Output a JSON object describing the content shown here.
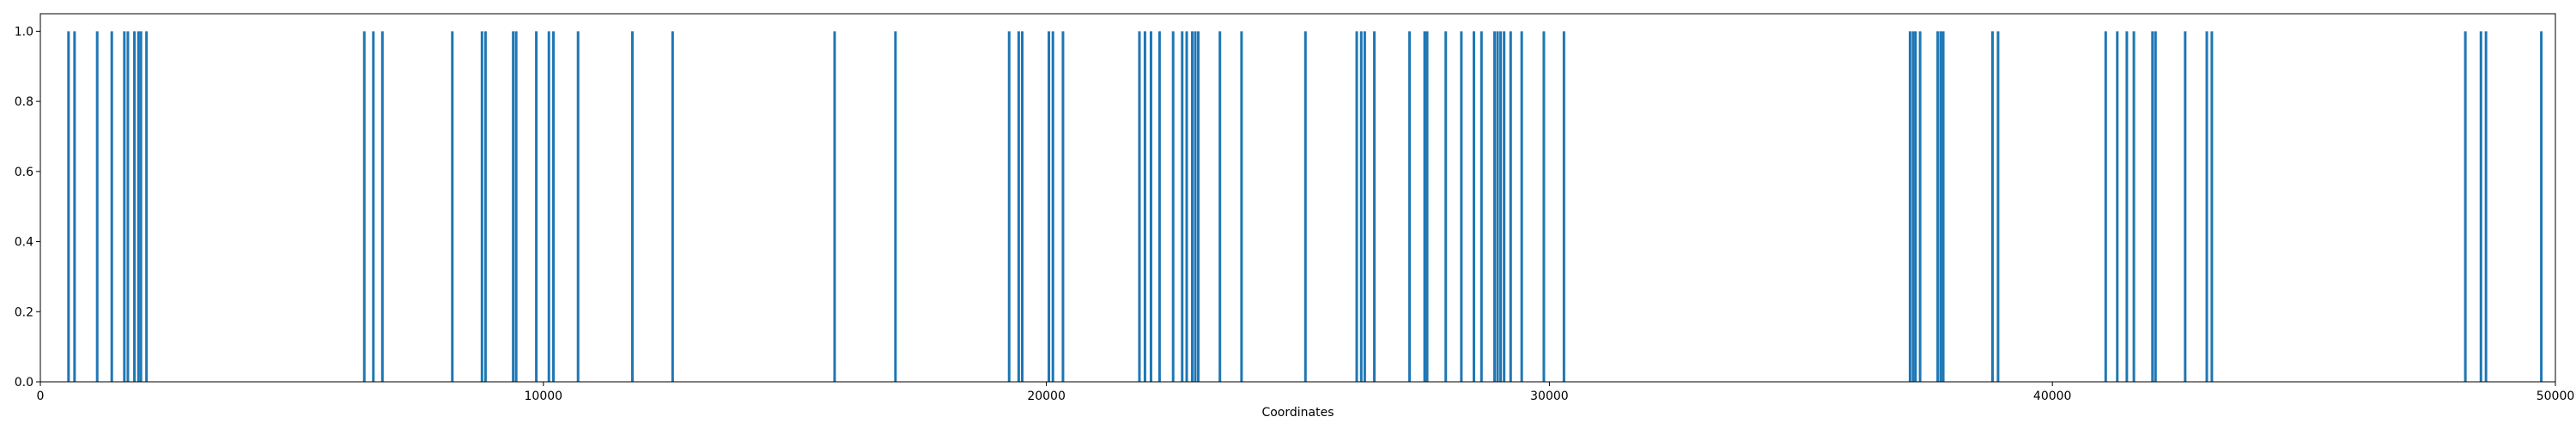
{
  "chart_data": {
    "type": "bar",
    "xlabel": "Coordinates",
    "ylabel": "",
    "xlim": [
      0,
      50000
    ],
    "ylim": [
      0,
      1.05
    ],
    "grid": false,
    "bar_color": "#1f77b4",
    "bar_value": 1.0,
    "x_ticks": [
      0,
      10000,
      20000,
      30000,
      40000,
      50000
    ],
    "x_tick_labels": [
      "0",
      "10000",
      "20000",
      "30000",
      "40000",
      "50000"
    ],
    "y_ticks": [
      0.0,
      0.2,
      0.4,
      0.6,
      0.8,
      1.0
    ],
    "y_tick_labels": [
      "0.0",
      "0.2",
      "0.4",
      "0.6",
      "0.8",
      "1.0"
    ],
    "x": [
      560,
      680,
      1130,
      1420,
      1670,
      1740,
      1870,
      1950,
      2000,
      2110,
      6440,
      6620,
      6800,
      8190,
      8780,
      8850,
      9400,
      9460,
      9860,
      10110,
      10200,
      10690,
      11770,
      12570,
      15790,
      17000,
      19260,
      19450,
      19520,
      20050,
      20130,
      20330,
      21850,
      21960,
      22080,
      22250,
      22520,
      22700,
      22790,
      22900,
      22960,
      23020,
      23450,
      23880,
      25150,
      26170,
      26260,
      26330,
      26520,
      27220,
      27520,
      27570,
      27940,
      28250,
      28500,
      28650,
      28910,
      28970,
      29030,
      29100,
      29230,
      29450,
      29890,
      30290,
      37170,
      37230,
      37280,
      37370,
      37720,
      37780,
      37830,
      38810,
      38920,
      41060,
      41290,
      41480,
      41620,
      41990,
      42050,
      42640,
      43070,
      43170,
      48210,
      48520,
      48620,
      49720
    ]
  }
}
